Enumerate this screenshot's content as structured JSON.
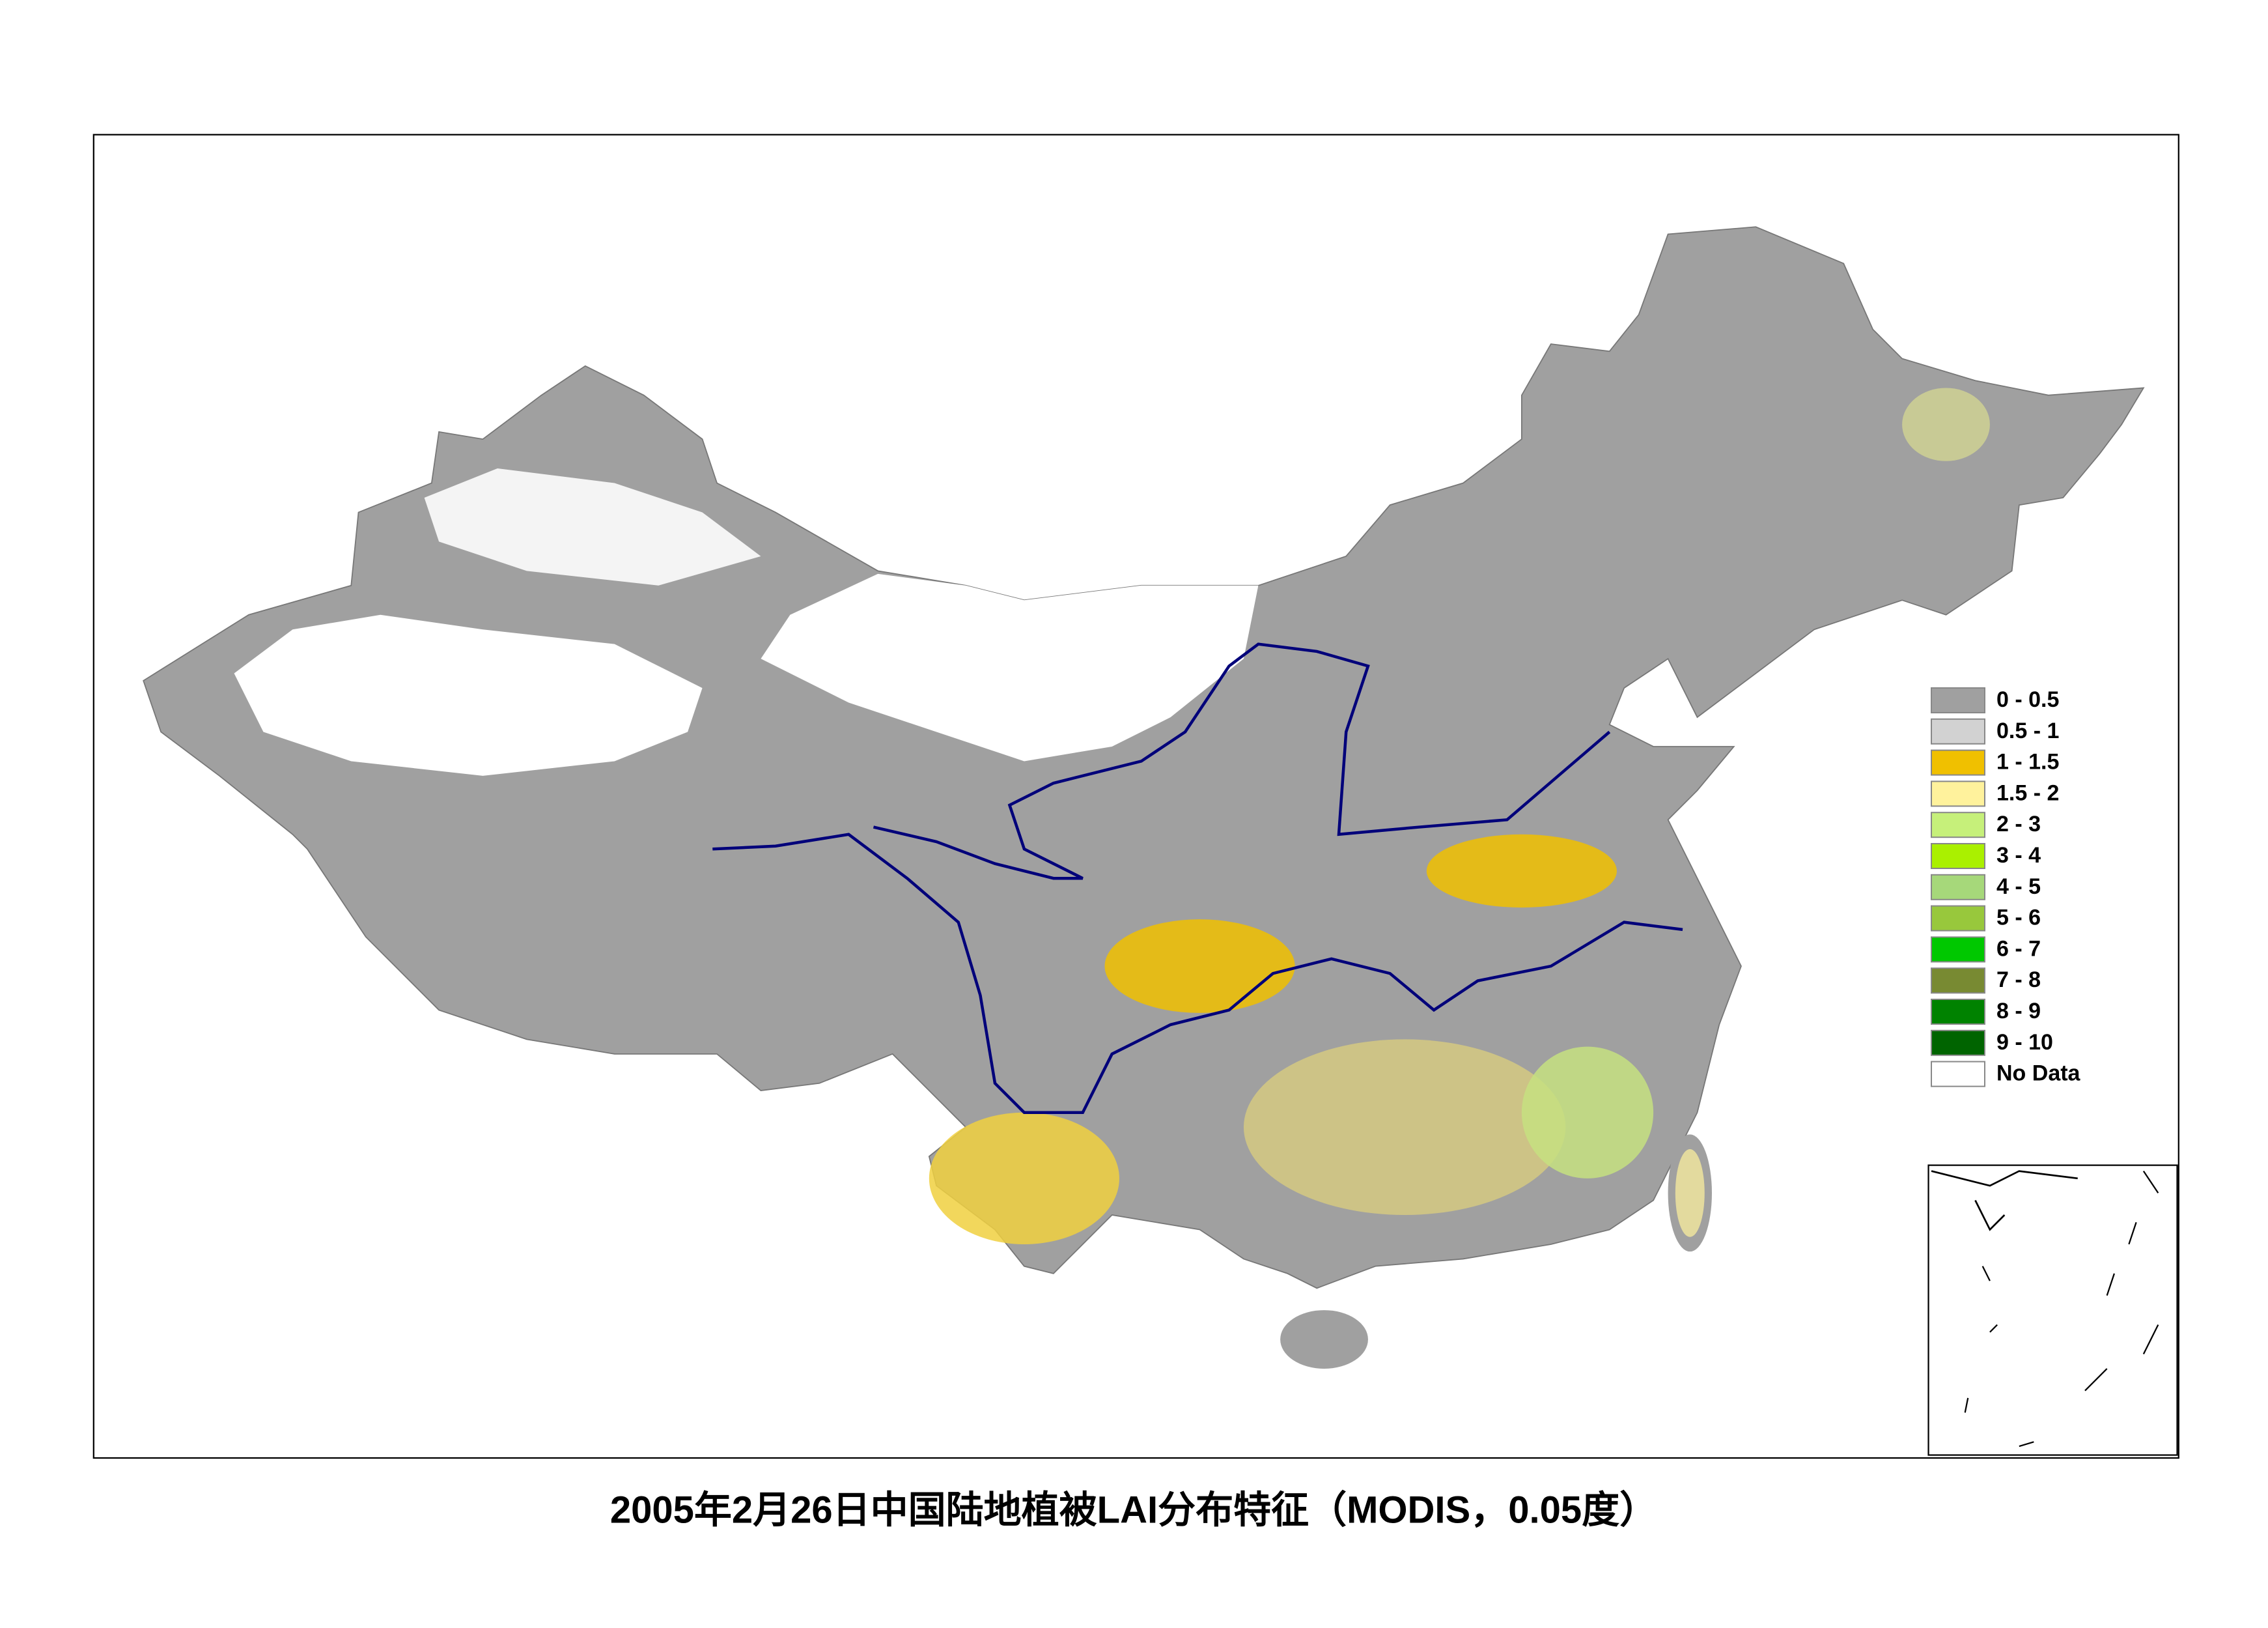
{
  "title": "2005年2月26日中国陆地植被LAI分布特征（MODIS，0.05度）",
  "legend": [
    {
      "label": "0 - 0.5",
      "color": "#a0a0a0"
    },
    {
      "label": "0.5 - 1",
      "color": "#d2d2d2"
    },
    {
      "label": "1 - 1.5",
      "color": "#f0c000"
    },
    {
      "label": "1.5 - 2",
      "color": "#fff29c"
    },
    {
      "label": "2 - 3",
      "color": "#c6f07a"
    },
    {
      "label": "3 - 4",
      "color": "#aaf000"
    },
    {
      "label": "4 - 5",
      "color": "#a6d87a"
    },
    {
      "label": "5 - 6",
      "color": "#98c83c"
    },
    {
      "label": "6 - 7",
      "color": "#00c800"
    },
    {
      "label": "7 - 8",
      "color": "#788a32"
    },
    {
      "label": "8 - 9",
      "color": "#008200"
    },
    {
      "label": "9 - 10",
      "color": "#006400"
    },
    {
      "label": "No Data",
      "color": "#ffffff"
    }
  ]
}
